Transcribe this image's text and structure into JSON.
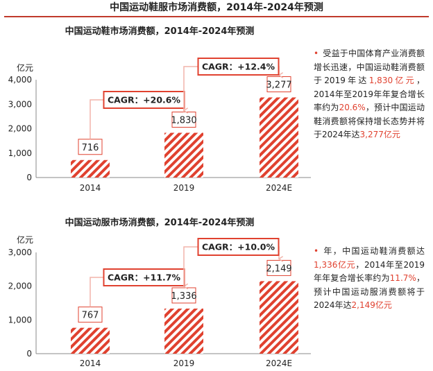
{
  "page_title": "中国运动鞋服市场消费额，2014年-2024年预测",
  "colors": {
    "accent": "#e0412f",
    "bar": "#e0412f",
    "arrow": "#f2b4aa",
    "rule": "#c0392b"
  },
  "chart_data": [
    {
      "type": "bar",
      "title": "中国运动鞋市场消费额，2014年-2024年预测",
      "ylabel": "亿元",
      "categories": [
        "2014",
        "2019",
        "2024E"
      ],
      "values": [
        716,
        1830,
        3277
      ],
      "value_labels": [
        "716",
        "1,830",
        "3,277"
      ],
      "yticks": [
        "0",
        "1,000",
        "2,000",
        "3,000",
        "4,000"
      ],
      "ylim": [
        0,
        4000
      ],
      "grid": false,
      "cagr": [
        "CAGR：+20.6%",
        "CAGR：+12.4%"
      ]
    },
    {
      "type": "bar",
      "title": "中国运动服市场消费额，2014年-2024年预测",
      "ylabel": "亿元",
      "categories": [
        "2014",
        "2019",
        "2024E"
      ],
      "values": [
        767,
        1336,
        2149
      ],
      "value_labels": [
        "767",
        "1,336",
        "2,149"
      ],
      "yticks": [
        "0",
        "1,000",
        "2,000",
        "3,000"
      ],
      "ylim": [
        0,
        3000
      ],
      "grid": false,
      "cagr": [
        "CAGR：+11.7%",
        "CAGR：+10.0%"
      ]
    }
  ],
  "notes": [
    {
      "bullet": "•",
      "segments": [
        {
          "t": "受益于中国体育产业消费额增长迅速，中国运动鞋消费额于2019年达",
          "hl": false
        },
        {
          "t": "1,830亿元",
          "hl": true
        },
        {
          "t": "，2014年至2019年年复合增长率约为",
          "hl": false
        },
        {
          "t": "20.6%",
          "hl": true
        },
        {
          "t": "，预计中国运动鞋消费额将保持增长态势并将于2024年达",
          "hl": false
        },
        {
          "t": "3,277亿元",
          "hl": true
        }
      ]
    },
    {
      "bullet": "•",
      "segments": [
        {
          "t": "年，中国运动鞋消费额达",
          "hl": false
        },
        {
          "t": "1,336亿元",
          "hl": true
        },
        {
          "t": "，2014年至2019年年复合增长率约为",
          "hl": false
        },
        {
          "t": "11.7%",
          "hl": true
        },
        {
          "t": "，预计中国运动服消费额将于2024年达",
          "hl": false
        },
        {
          "t": "2,149亿元",
          "hl": true
        }
      ]
    }
  ]
}
